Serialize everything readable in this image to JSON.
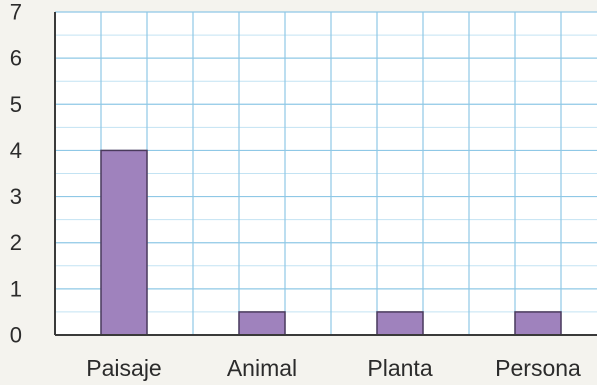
{
  "chart_data": {
    "type": "bar",
    "categories": [
      "Paisaje",
      "Animal",
      "Planta",
      "Persona"
    ],
    "values": [
      4,
      0.5,
      0.5,
      0.5
    ],
    "title": "",
    "xlabel": "",
    "ylabel": "",
    "ylim": [
      0,
      7
    ],
    "yticks": [
      "0",
      "1",
      "2",
      "3",
      "4",
      "5",
      "6",
      "7"
    ],
    "grid": true,
    "colors": {
      "bar_fill": "#9f82bd",
      "bar_stroke": "#4a3a5c",
      "grid_major": "#8fc8e6",
      "grid_minor": "#c3e3f3",
      "plot_background": "#ffffff",
      "axis": "#3a3a3a"
    }
  }
}
